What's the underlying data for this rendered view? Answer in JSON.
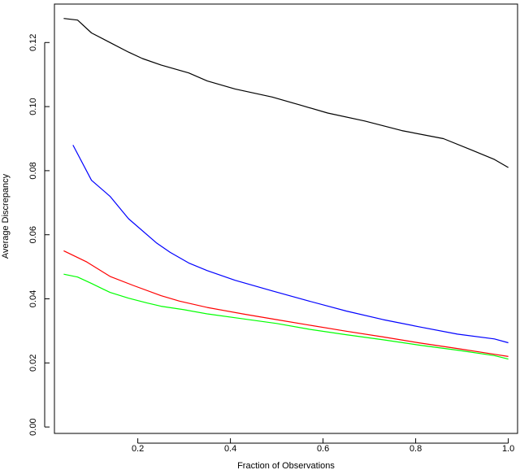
{
  "chart_data": {
    "type": "line",
    "title": "",
    "xlabel": "Fraction of Observations",
    "ylabel": "Average  Discrepancy",
    "xlim": [
      0.02,
      1.02
    ],
    "ylim": [
      -0.002,
      0.132
    ],
    "xticks": [
      0.2,
      0.4,
      0.6,
      0.8,
      1.0
    ],
    "xtick_labels": [
      "0.2",
      "0.4",
      "0.6",
      "0.8",
      "1.0"
    ],
    "yticks": [
      0.0,
      0.02,
      0.04,
      0.06,
      0.08,
      0.1,
      0.12
    ],
    "ytick_labels": [
      "0.00",
      "0.02",
      "0.04",
      "0.06",
      "0.08",
      "0.10",
      "0.12"
    ],
    "grid": false,
    "series": [
      {
        "color": "#000000",
        "x": [
          0.04,
          0.07,
          0.1,
          0.14,
          0.18,
          0.21,
          0.25,
          0.31,
          0.35,
          0.41,
          0.49,
          0.55,
          0.61,
          0.69,
          0.77,
          0.86,
          0.92,
          0.97,
          1.0
        ],
        "y": [
          0.1275,
          0.127,
          0.123,
          0.12,
          0.117,
          0.115,
          0.113,
          0.1105,
          0.108,
          0.1055,
          0.103,
          0.1005,
          0.098,
          0.0955,
          0.0925,
          0.09,
          0.0865,
          0.0835,
          0.081
        ]
      },
      {
        "color": "#0000ff",
        "x": [
          0.06,
          0.1,
          0.14,
          0.18,
          0.24,
          0.27,
          0.31,
          0.35,
          0.41,
          0.49,
          0.57,
          0.65,
          0.73,
          0.81,
          0.89,
          0.97,
          1.0
        ],
        "y": [
          0.088,
          0.077,
          0.072,
          0.065,
          0.0575,
          0.0545,
          0.0512,
          0.0488,
          0.0458,
          0.0425,
          0.0393,
          0.0362,
          0.0335,
          0.0312,
          0.029,
          0.0275,
          0.0263
        ]
      },
      {
        "color": "#ff0000",
        "x": [
          0.04,
          0.09,
          0.14,
          0.19,
          0.25,
          0.29,
          0.35,
          0.43,
          0.5,
          0.57,
          0.65,
          0.73,
          0.81,
          0.89,
          0.97,
          1.0
        ],
        "y": [
          0.055,
          0.0515,
          0.047,
          0.0442,
          0.041,
          0.0393,
          0.0373,
          0.0352,
          0.0335,
          0.0318,
          0.0299,
          0.0281,
          0.0262,
          0.0245,
          0.0227,
          0.022
        ]
      },
      {
        "color": "#00ff00",
        "x": [
          0.04,
          0.07,
          0.1,
          0.14,
          0.18,
          0.22,
          0.25,
          0.3,
          0.35,
          0.43,
          0.5,
          0.57,
          0.65,
          0.73,
          0.81,
          0.89,
          0.97,
          1.0
        ],
        "y": [
          0.0477,
          0.0468,
          0.0448,
          0.042,
          0.0402,
          0.0387,
          0.0377,
          0.0366,
          0.0353,
          0.0337,
          0.0323,
          0.0305,
          0.0288,
          0.0272,
          0.0255,
          0.024,
          0.0223,
          0.0212
        ]
      }
    ]
  }
}
